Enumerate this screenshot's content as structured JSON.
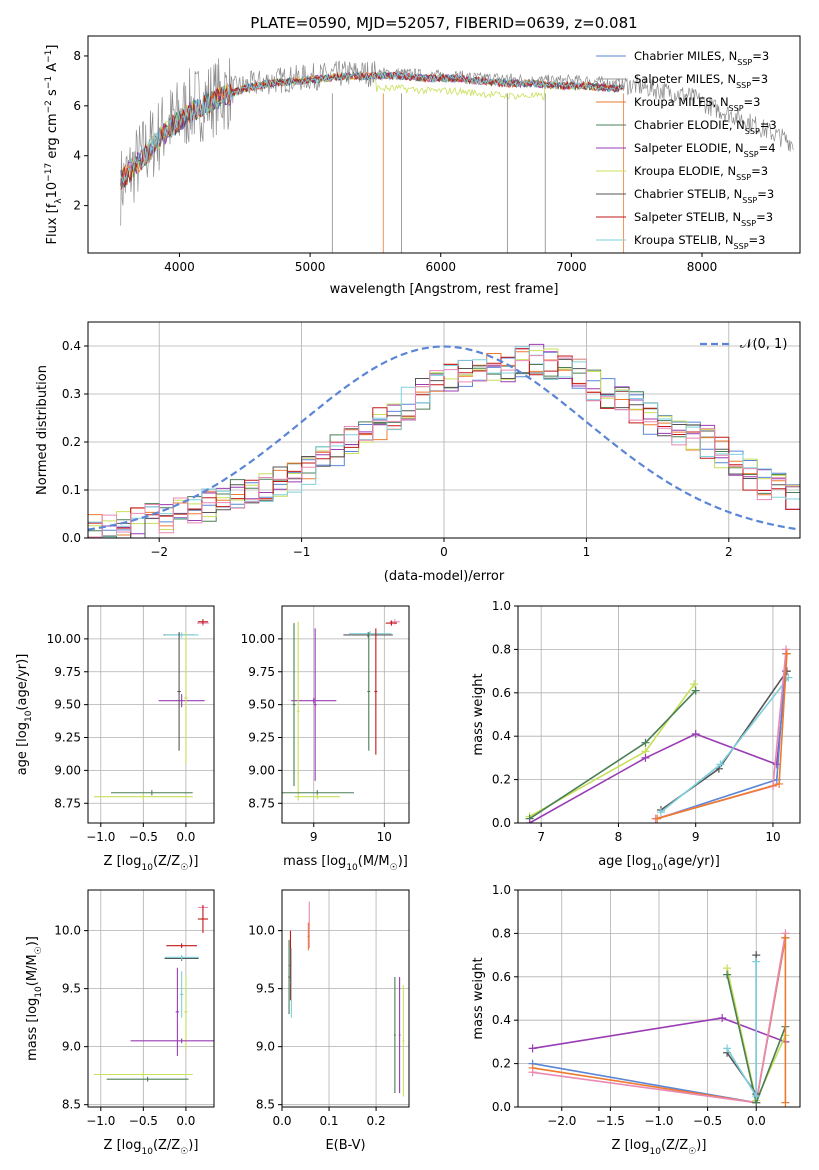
{
  "page": {
    "title": "PLATE=0590, MJD=52057, FIBERID=0639, z=0.081"
  },
  "colors": [
    "#5b86d6",
    "#9a9a9a",
    "#ee7a2e",
    "#4a7f55",
    "#9a3cb4",
    "#c8e05a",
    "#555555",
    "#c01818",
    "#7fd0dc",
    "#ea88b4"
  ],
  "chart_data": [
    {
      "id": "spectrum",
      "type": "line",
      "title": "PLATE=0590, MJD=52057, FIBERID=0639, z=0.081",
      "xlabel": "wavelength [Angstrom, rest frame]",
      "ylabel": "Flux [f_λ10^-17 erg cm^-2 s^-1 A^-1]",
      "xlim": [
        3300,
        8750
      ],
      "ylim": [
        0.1,
        8.8
      ],
      "xticks": [
        4000,
        5000,
        6000,
        7000,
        8000
      ],
      "yticks": [
        2,
        4,
        6,
        8
      ],
      "grid": false,
      "legend_position": "top-right",
      "series": [
        {
          "name": "Chabrier MILES, N_SSP=3",
          "color": "#5b86d6"
        },
        {
          "name": "Salpeter MILES, N_SSP=3",
          "color": "#9a9a9a"
        },
        {
          "name": "Kroupa MILES, N_SSP=3",
          "color": "#ee7a2e"
        },
        {
          "name": "Chabrier ELODIE, N_SSP=3",
          "color": "#4a7f55"
        },
        {
          "name": "Salpeter ELODIE, N_SSP=4",
          "color": "#9a3cb4"
        },
        {
          "name": "Kroupa ELODIE, N_SSP=3",
          "color": "#c8e05a"
        },
        {
          "name": "Chabrier STELIB, N_SSP=3",
          "color": "#555555"
        },
        {
          "name": "Salpeter STELIB, N_SSP=3",
          "color": "#c01818"
        },
        {
          "name": "Kroupa STELIB, N_SSP=3",
          "color": "#7fd0dc"
        }
      ],
      "data_curve": {
        "x": [
          3550,
          3700,
          3900,
          4100,
          4300,
          4500,
          4700,
          4900,
          5100,
          5300,
          5500,
          5700,
          5900,
          6100,
          6300,
          6500,
          6700,
          6900,
          7100,
          7300,
          7500,
          7700,
          7900,
          8100,
          8300,
          8500,
          8700
        ],
        "y": [
          2.8,
          3.9,
          5.2,
          6.0,
          6.4,
          6.8,
          7.0,
          7.1,
          7.2,
          7.3,
          7.3,
          7.3,
          7.2,
          7.2,
          7.1,
          7.1,
          7.0,
          7.0,
          7.0,
          6.9,
          6.8,
          6.6,
          6.4,
          5.9,
          5.5,
          5.0,
          4.5
        ]
      },
      "model_curve": {
        "x": [
          3550,
          3700,
          3900,
          4100,
          4300,
          4500,
          4700,
          4900,
          5100,
          5300,
          5500,
          5700,
          5900,
          6100,
          6300,
          6500,
          6700,
          6900,
          7100,
          7300,
          7400
        ],
        "y": [
          3.0,
          3.8,
          5.0,
          5.8,
          6.3,
          6.7,
          6.9,
          7.0,
          7.1,
          7.2,
          7.2,
          7.2,
          7.1,
          7.1,
          7.0,
          6.9,
          6.9,
          6.8,
          6.8,
          6.7,
          6.7
        ]
      }
    },
    {
      "id": "residuals",
      "type": "line",
      "xlabel": "(data-model)/error",
      "ylabel": "Normed distribution",
      "xlim": [
        -2.5,
        2.5
      ],
      "ylim": [
        0,
        0.45
      ],
      "xticks": [
        -2,
        -1,
        0,
        1,
        2
      ],
      "yticks": [
        0.0,
        0.1,
        0.2,
        0.3,
        0.4
      ],
      "grid": true,
      "legend": [
        "𝒩(0, 1)"
      ],
      "legend_position": "top-right",
      "hist_x": [
        -2.5,
        -2.4,
        -2.3,
        -2.2,
        -2.1,
        -2.0,
        -1.9,
        -1.8,
        -1.7,
        -1.6,
        -1.5,
        -1.4,
        -1.3,
        -1.2,
        -1.1,
        -1.0,
        -0.9,
        -0.8,
        -0.7,
        -0.6,
        -0.5,
        -0.4,
        -0.3,
        -0.2,
        -0.1,
        0.0,
        0.1,
        0.2,
        0.3,
        0.4,
        0.5,
        0.6,
        0.7,
        0.8,
        0.9,
        1.0,
        1.1,
        1.2,
        1.3,
        1.4,
        1.5,
        1.6,
        1.7,
        1.8,
        1.9,
        2.0,
        2.1,
        2.2,
        2.3,
        2.4
      ],
      "hist_y": [
        0.02,
        0.02,
        0.03,
        0.03,
        0.04,
        0.04,
        0.05,
        0.06,
        0.07,
        0.08,
        0.09,
        0.1,
        0.11,
        0.12,
        0.13,
        0.14,
        0.16,
        0.18,
        0.2,
        0.22,
        0.24,
        0.26,
        0.28,
        0.3,
        0.32,
        0.34,
        0.35,
        0.35,
        0.35,
        0.36,
        0.37,
        0.37,
        0.36,
        0.35,
        0.34,
        0.32,
        0.3,
        0.28,
        0.27,
        0.25,
        0.24,
        0.22,
        0.21,
        0.2,
        0.18,
        0.16,
        0.13,
        0.11,
        0.1,
        0.09
      ]
    },
    {
      "id": "age-vs-Z",
      "type": "scatter",
      "xlabel": "Z [log10(Z/Z☉)]",
      "ylabel": "age [log10(age/yr)]",
      "xlim": [
        -1.15,
        0.33
      ],
      "ylim": [
        8.6,
        10.25
      ],
      "xticks": [
        -1.0,
        -0.5,
        0.0
      ],
      "yticks": [
        8.75,
        9.0,
        9.25,
        9.5,
        9.75,
        10.0
      ],
      "grid": true,
      "errorbars": [
        {
          "x": 0.2,
          "y": 10.12,
          "xerr": 0.07,
          "yerr": 0.02,
          "c": "#ea88b4"
        },
        {
          "x": 0.2,
          "y": 10.13,
          "xerr": 0.06,
          "yerr": 0.02,
          "c": "#c01818"
        },
        {
          "x": -0.08,
          "y": 10.03,
          "xerr": 0.18,
          "yerr": 0.02,
          "c": "#555555"
        },
        {
          "x": -0.05,
          "y": 10.03,
          "xerr": 0.2,
          "yerr": 0.02,
          "c": "#7fd0dc"
        },
        {
          "x": -0.05,
          "y": 9.53,
          "xerr": 0.27,
          "yerr": 0.05,
          "c": "#9a3cb4"
        },
        {
          "x": -0.08,
          "y": 9.6,
          "xerr": 0.02,
          "yerr": 0.45,
          "c": "#555555"
        },
        {
          "x": 0.0,
          "y": 9.55,
          "xerr": 0.02,
          "yerr": 0.5,
          "c": "#c8e05a"
        },
        {
          "x": -0.4,
          "y": 8.83,
          "xerr": 0.48,
          "yerr": 0.02,
          "c": "#4a7f55"
        },
        {
          "x": -0.5,
          "y": 8.8,
          "xerr": 0.58,
          "yerr": 0.02,
          "c": "#c8e05a"
        }
      ]
    },
    {
      "id": "age-vs-mass",
      "type": "scatter",
      "xlabel": "mass [log10(M/M☉)]",
      "ylabel": "",
      "xlim": [
        8.55,
        10.35
      ],
      "ylim": [
        8.6,
        10.25
      ],
      "xticks": [
        9,
        10
      ],
      "yticks": [
        8.75,
        9.0,
        9.25,
        9.5,
        9.75,
        10.0
      ],
      "grid": true,
      "errorbars": [
        {
          "x": 10.15,
          "y": 10.13,
          "xerr": 0.07,
          "yerr": 0.02,
          "c": "#ea88b4"
        },
        {
          "x": 10.1,
          "y": 10.12,
          "xerr": 0.08,
          "yerr": 0.02,
          "c": "#c01818"
        },
        {
          "x": 9.77,
          "y": 10.03,
          "xerr": 0.35,
          "yerr": 0.02,
          "c": "#555555"
        },
        {
          "x": 9.8,
          "y": 10.04,
          "xerr": 0.3,
          "yerr": 0.02,
          "c": "#7fd0dc"
        },
        {
          "x": 9.0,
          "y": 9.53,
          "xerr": 0.32,
          "yerr": 0.02,
          "c": "#9a3cb4"
        },
        {
          "x": 9.02,
          "y": 9.5,
          "xerr": 0.02,
          "yerr": 0.58,
          "c": "#9a3cb4"
        },
        {
          "x": 9.78,
          "y": 9.6,
          "xerr": 0.02,
          "yerr": 0.45,
          "c": "#4a7f55"
        },
        {
          "x": 9.88,
          "y": 9.6,
          "xerr": 0.02,
          "yerr": 0.48,
          "c": "#c01818"
        },
        {
          "x": 8.78,
          "y": 9.45,
          "xerr": 0.02,
          "yerr": 0.68,
          "c": "#c8e05a"
        },
        {
          "x": 8.72,
          "y": 9.5,
          "xerr": 0.02,
          "yerr": 0.62,
          "c": "#4a7f55"
        },
        {
          "x": 9.05,
          "y": 8.83,
          "xerr": 0.52,
          "yerr": 0.02,
          "c": "#4a7f55"
        },
        {
          "x": 9.05,
          "y": 8.8,
          "xerr": 0.32,
          "yerr": 0.02,
          "c": "#c8e05a"
        }
      ]
    },
    {
      "id": "mass-weight-vs-age",
      "type": "line",
      "xlabel": "age  [log10(age/yr)]",
      "ylabel": "mass weight",
      "xlim": [
        6.7,
        10.35
      ],
      "ylim": [
        0,
        1.0
      ],
      "xticks": [
        7,
        8,
        9,
        10
      ],
      "yticks": [
        0.0,
        0.2,
        0.4,
        0.6,
        0.8,
        1.0
      ],
      "grid": true,
      "series": [
        {
          "c": "#c8e05a",
          "x": [
            6.85,
            8.35,
            8.98
          ],
          "y": [
            0.03,
            0.33,
            0.64
          ]
        },
        {
          "c": "#4a7f55",
          "x": [
            6.85,
            8.35,
            9.0
          ],
          "y": [
            0.02,
            0.37,
            0.61
          ]
        },
        {
          "c": "#9a3cb4",
          "x": [
            6.85,
            8.35,
            9.0,
            10.05,
            10.17
          ],
          "y": [
            0.0,
            0.3,
            0.41,
            0.27,
            0.7
          ]
        },
        {
          "c": "#555555",
          "x": [
            8.55,
            9.3,
            10.18
          ],
          "y": [
            0.06,
            0.25,
            0.7
          ]
        },
        {
          "c": "#7fd0dc",
          "x": [
            8.55,
            9.32,
            10.2
          ],
          "y": [
            0.05,
            0.27,
            0.67
          ]
        },
        {
          "c": "#5b86d6",
          "x": [
            8.5,
            10.05,
            10.17
          ],
          "y": [
            0.02,
            0.2,
            0.78
          ]
        },
        {
          "c": "#ea88b4",
          "x": [
            8.48,
            10.0,
            10.17
          ],
          "y": [
            0.02,
            0.17,
            0.8
          ]
        },
        {
          "c": "#ee7a2e",
          "x": [
            8.5,
            10.08,
            10.18
          ],
          "y": [
            0.02,
            0.18,
            0.78
          ]
        }
      ]
    },
    {
      "id": "mass-vs-Z",
      "type": "scatter",
      "xlabel": "Z [log10(Z/Z☉)]",
      "ylabel": "mass [log10(M/M☉)]",
      "xlim": [
        -1.15,
        0.33
      ],
      "ylim": [
        8.48,
        10.35
      ],
      "xticks": [
        -1.0,
        -0.5,
        0.0
      ],
      "yticks": [
        8.5,
        9.0,
        9.5,
        10.0
      ],
      "grid": true,
      "errorbars": [
        {
          "x": 0.2,
          "y": 10.2,
          "xerr": 0.06,
          "yerr": 0.02,
          "c": "#ea88b4"
        },
        {
          "x": 0.2,
          "y": 10.1,
          "xerr": 0.06,
          "yerr": 0.12,
          "c": "#c01818"
        },
        {
          "x": -0.05,
          "y": 9.87,
          "xerr": 0.18,
          "yerr": 0.02,
          "c": "#c01818"
        },
        {
          "x": -0.05,
          "y": 9.76,
          "xerr": 0.2,
          "yerr": 0.02,
          "c": "#555555"
        },
        {
          "x": -0.05,
          "y": 9.77,
          "xerr": 0.2,
          "yerr": 0.02,
          "c": "#7fd0dc"
        },
        {
          "x": -0.05,
          "y": 9.45,
          "xerr": 0.02,
          "yerr": 0.2,
          "c": "#7fd0dc"
        },
        {
          "x": -0.1,
          "y": 9.3,
          "xerr": 0.02,
          "yerr": 0.38,
          "c": "#9a3cb4"
        },
        {
          "x": 0.0,
          "y": 9.3,
          "xerr": 0.02,
          "yerr": 0.32,
          "c": "#c8e05a"
        },
        {
          "x": -0.05,
          "y": 9.05,
          "xerr": 0.6,
          "yerr": 0.02,
          "c": "#9a3cb4"
        },
        {
          "x": -0.45,
          "y": 8.72,
          "xerr": 0.48,
          "yerr": 0.02,
          "c": "#4a7f55"
        },
        {
          "x": -0.5,
          "y": 8.76,
          "xerr": 0.58,
          "yerr": 0.02,
          "c": "#c8e05a"
        }
      ]
    },
    {
      "id": "mass-vs-EBV",
      "type": "scatter",
      "xlabel": "E(B-V)",
      "ylabel": "",
      "xlim": [
        0.0,
        0.27
      ],
      "ylim": [
        8.48,
        10.35
      ],
      "xticks": [
        0.0,
        0.1,
        0.2
      ],
      "yticks": [
        8.5,
        9.0,
        9.5,
        10.0
      ],
      "grid": true,
      "errorbars": [
        {
          "x": 0.015,
          "y": 9.6,
          "xerr": 0.002,
          "yerr": 0.32,
          "c": "#4a7f55"
        },
        {
          "x": 0.018,
          "y": 9.7,
          "xerr": 0.002,
          "yerr": 0.3,
          "c": "#c01818"
        },
        {
          "x": 0.02,
          "y": 9.55,
          "xerr": 0.002,
          "yerr": 0.3,
          "c": "#7fd0dc"
        },
        {
          "x": 0.058,
          "y": 10.05,
          "xerr": 0.002,
          "yerr": 0.2,
          "c": "#ea88b4"
        },
        {
          "x": 0.056,
          "y": 9.95,
          "xerr": 0.002,
          "yerr": 0.12,
          "c": "#ee7a2e"
        },
        {
          "x": 0.24,
          "y": 9.1,
          "xerr": 0.002,
          "yerr": 0.5,
          "c": "#4a7f55"
        },
        {
          "x": 0.25,
          "y": 9.1,
          "xerr": 0.002,
          "yerr": 0.5,
          "c": "#9a3cb4"
        },
        {
          "x": 0.258,
          "y": 9.05,
          "xerr": 0.002,
          "yerr": 0.48,
          "c": "#c8e05a"
        }
      ]
    },
    {
      "id": "mass-weight-vs-Z",
      "type": "line",
      "xlabel": "Z [log10(Z/Z☉)]",
      "ylabel": "mass weight",
      "xlim": [
        -2.45,
        0.45
      ],
      "ylim": [
        0,
        1.0
      ],
      "xticks": [
        -2.0,
        -1.5,
        -1.0,
        -0.5,
        0.0
      ],
      "yticks": [
        0.0,
        0.2,
        0.4,
        0.6,
        0.8,
        1.0
      ],
      "grid": true,
      "series": [
        {
          "c": "#9a3cb4",
          "x": [
            -2.3,
            -0.35,
            0.3
          ],
          "y": [
            0.27,
            0.41,
            0.3
          ]
        },
        {
          "c": "#5b86d6",
          "x": [
            -2.3,
            0.0,
            0.3
          ],
          "y": [
            0.2,
            0.02,
            0.78
          ]
        },
        {
          "c": "#ee7a2e",
          "x": [
            -2.3,
            0.0,
            0.3
          ],
          "y": [
            0.18,
            0.02,
            0.78
          ]
        },
        {
          "c": "#ea88b4",
          "x": [
            -2.3,
            0.0,
            0.3
          ],
          "y": [
            0.16,
            0.02,
            0.8
          ]
        },
        {
          "c": "#c8e05a",
          "x": [
            -0.3,
            0.0,
            0.3
          ],
          "y": [
            0.64,
            0.03,
            0.33
          ]
        },
        {
          "c": "#4a7f55",
          "x": [
            -0.3,
            0.0,
            0.3
          ],
          "y": [
            0.61,
            0.02,
            0.37
          ]
        },
        {
          "c": "#555555",
          "x": [
            -0.3,
            0.0,
            0.0
          ],
          "y": [
            0.25,
            0.06,
            0.7
          ]
        },
        {
          "c": "#7fd0dc",
          "x": [
            -0.3,
            0.0,
            0.0
          ],
          "y": [
            0.27,
            0.05,
            0.67
          ]
        },
        {
          "c": "#ee7a2e",
          "x": [
            0.3,
            0.3
          ],
          "y": [
            0.02,
            0.78
          ]
        }
      ]
    }
  ]
}
